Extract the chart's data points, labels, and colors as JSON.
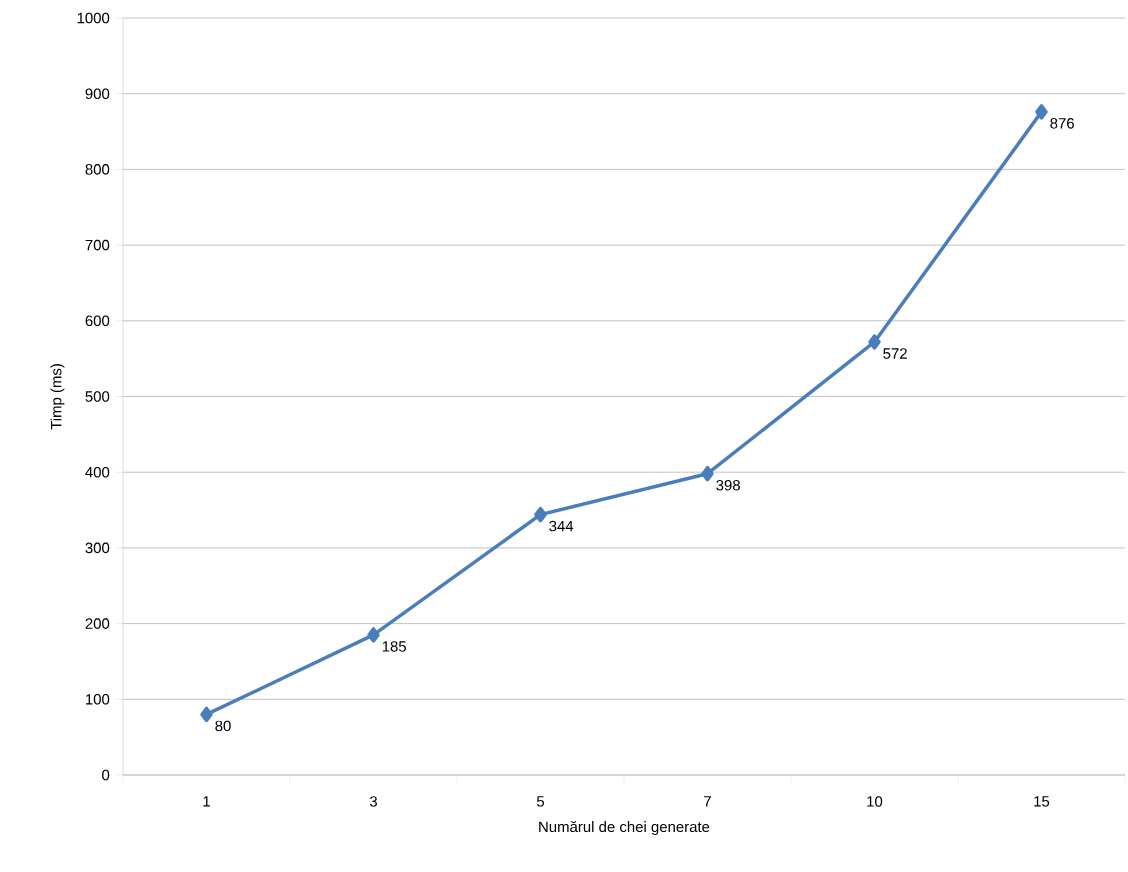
{
  "chart_data": {
    "type": "line",
    "xlabel": "Numărul de chei generate",
    "ylabel": "Timp (ms)",
    "categories": [
      "1",
      "3",
      "5",
      "7",
      "10",
      "15"
    ],
    "values": [
      80,
      185,
      344,
      398,
      572,
      876
    ],
    "color": "#4a7ebb",
    "marker": "diamond",
    "data_labels": true,
    "grid": "y",
    "ylim": [
      0,
      1000
    ],
    "yticks": [
      0,
      100,
      200,
      300,
      400,
      500,
      600,
      700,
      800,
      900,
      1000
    ]
  }
}
